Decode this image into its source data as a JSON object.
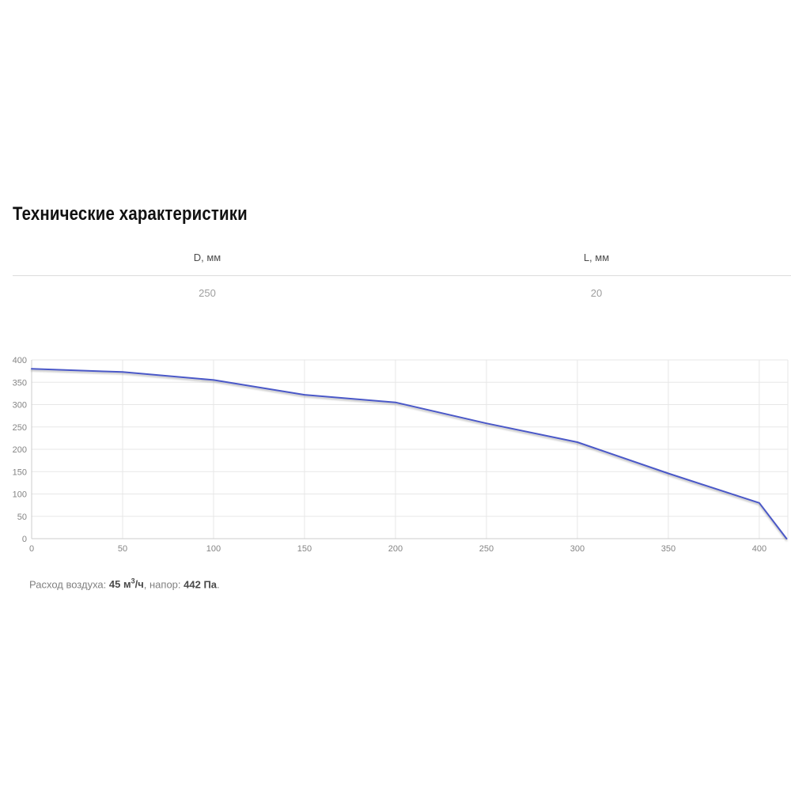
{
  "page": {
    "title": "Технические характеристики"
  },
  "specs": [
    {
      "header": "D, мм",
      "value": "250"
    },
    {
      "header": "L, мм",
      "value": "20"
    }
  ],
  "chart_data": {
    "type": "line",
    "title": "",
    "xlabel": "",
    "ylabel": "",
    "xlim": [
      0,
      415.7
    ],
    "ylim": [
      0,
      400
    ],
    "x_ticks": [
      0,
      50,
      100,
      150,
      200,
      250,
      300,
      350,
      400
    ],
    "y_ticks": [
      0,
      50,
      100,
      150,
      200,
      250,
      300,
      350,
      400
    ],
    "grid": true,
    "legend": "none",
    "series": [
      {
        "name": "fan-pressure-curve",
        "points": [
          [
            0,
            380
          ],
          [
            50,
            373
          ],
          [
            100,
            355
          ],
          [
            150,
            322
          ],
          [
            200,
            305
          ],
          [
            250,
            258
          ],
          [
            300,
            216
          ],
          [
            350,
            146
          ],
          [
            400,
            80
          ],
          [
            415,
            0
          ]
        ]
      }
    ],
    "colors": {
      "line": "#4a58c8",
      "gridline": "#e7e7e7",
      "axis_border": "#cccccc",
      "tick_label": "#848484"
    }
  },
  "footer": {
    "flow_label": "Расход воздуха: ",
    "flow_value_pre": "45 м",
    "flow_sup": "3",
    "flow_value_post": "/ч",
    "separator": ", напор: ",
    "pressure_value": "442 Па",
    "period": "."
  }
}
